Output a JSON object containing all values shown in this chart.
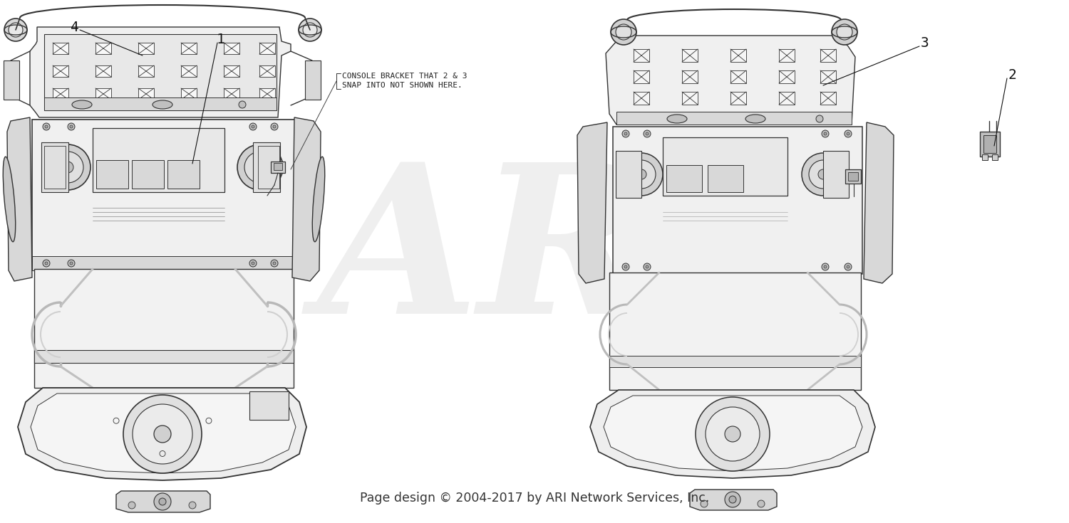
{
  "background_color": "#ffffff",
  "watermark_text": "AR",
  "watermark_color": "#cccccc",
  "watermark_alpha": 0.3,
  "footer_text": "Page design © 2004-2017 by ARI Network Services, Inc.",
  "footer_fontsize": 12.5,
  "footer_color": "#333333",
  "annotation_line1": "CONSOLE BRACKET THAT 2 & 3",
  "annotation_line2": "SNAP INTO NOT SHOWN HERE.",
  "annotation_fontsize": 8.0,
  "annotation_color": "#222222",
  "callout_fontsize": 14,
  "callout_color": "#111111",
  "line_color": "#333333",
  "fill_light": "#e8e8e8",
  "fill_medium": "#d0d0d0",
  "fill_dark": "#b0b0b0"
}
